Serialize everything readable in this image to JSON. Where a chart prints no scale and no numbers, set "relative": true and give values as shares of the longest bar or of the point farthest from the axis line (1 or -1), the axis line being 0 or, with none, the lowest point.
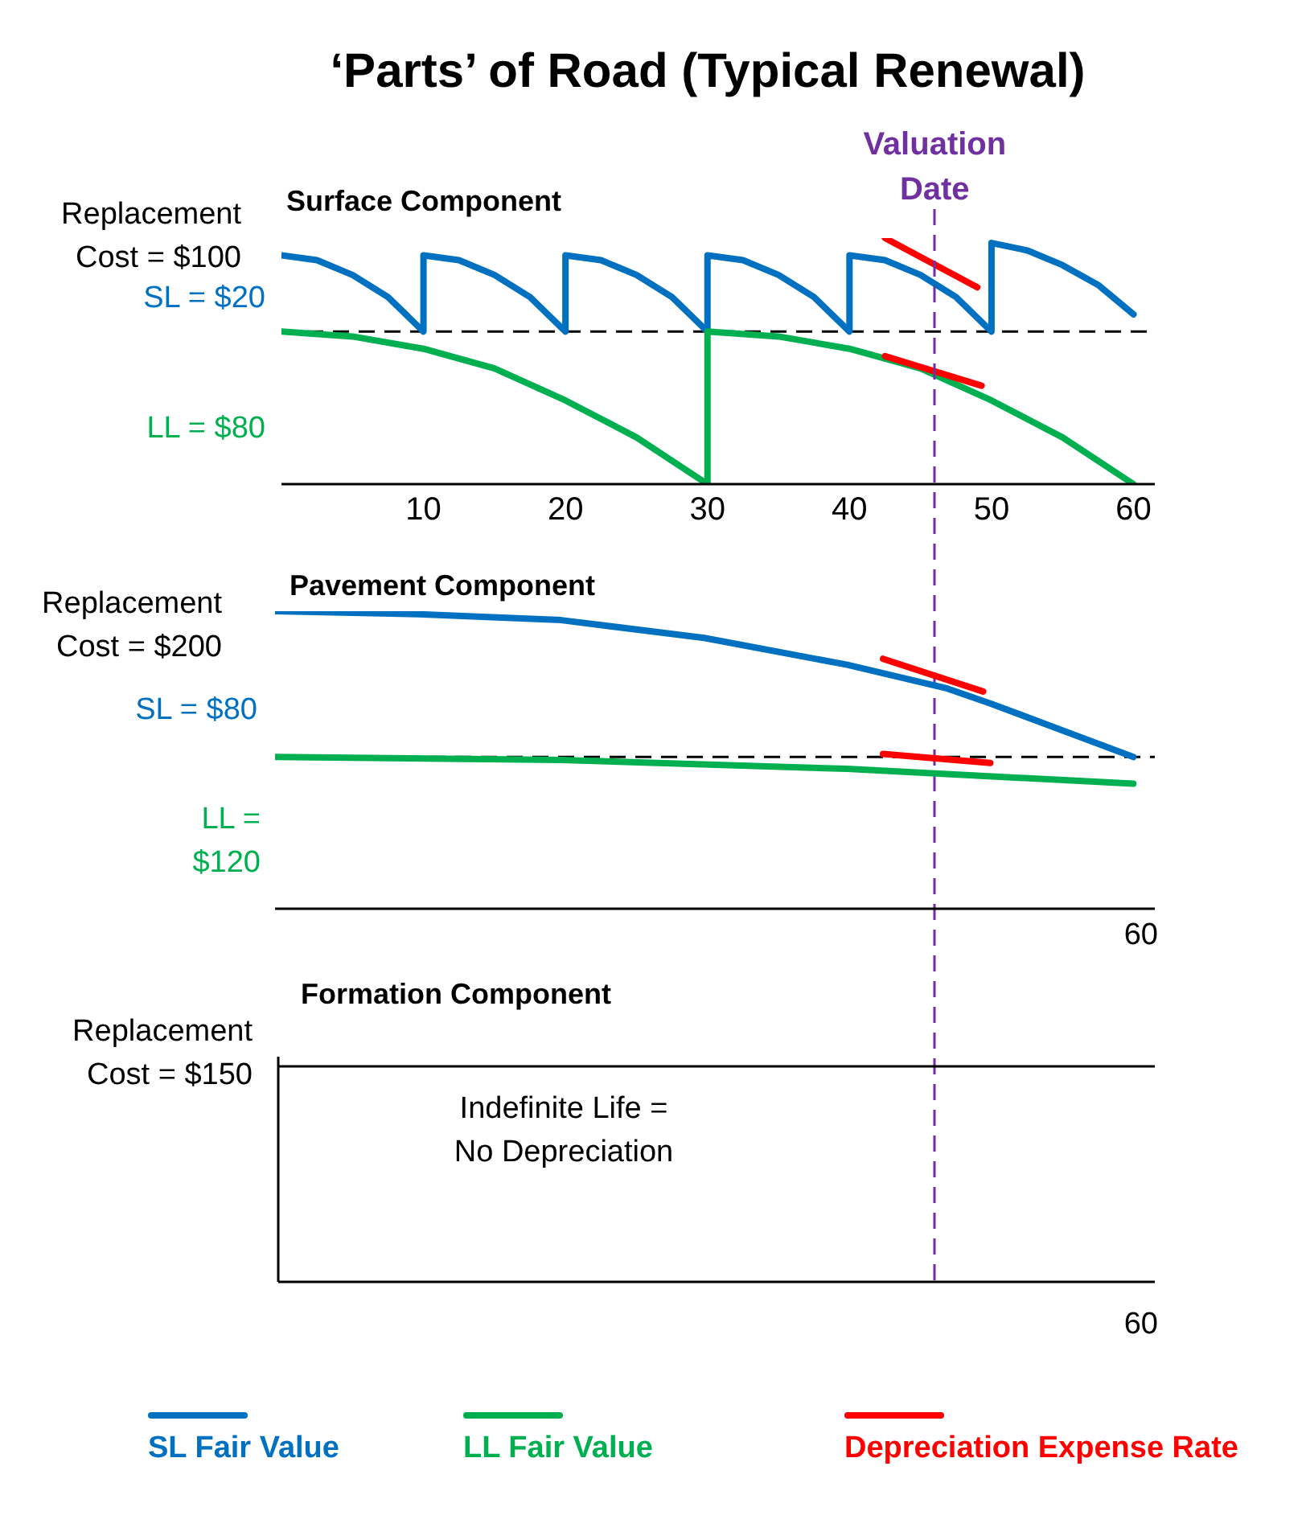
{
  "chart_data": [
    {
      "type": "line",
      "title": "‘Parts’ of Road (Typical Renewal)",
      "subtitle": "Surface Component",
      "relative": true,
      "xlim": [
        0,
        61.5
      ],
      "xticks": [
        10,
        20,
        30,
        40,
        50,
        60
      ],
      "legend": "bottom",
      "tick_labels": "x",
      "series": [
        {
          "name": "SL Fair Value",
          "color": "#0070c0",
          "x": [
            0,
            2.5,
            5,
            7.5,
            10,
            10,
            12.5,
            15,
            17.5,
            20,
            20,
            22.5,
            25,
            27.5,
            30,
            30,
            32.5,
            35,
            37.5,
            40,
            40,
            42.5,
            45,
            47.5,
            50,
            50,
            52.5,
            55,
            57.5,
            60
          ],
          "values": [
            0.93,
            0.91,
            0.85,
            0.76,
            0.62,
            0.93,
            0.91,
            0.85,
            0.76,
            0.62,
            0.93,
            0.91,
            0.85,
            0.76,
            0.62,
            0.93,
            0.91,
            0.85,
            0.76,
            0.62,
            0.93,
            0.91,
            0.85,
            0.76,
            0.62,
            0.98,
            0.95,
            0.89,
            0.81,
            0.69
          ]
        },
        {
          "name": "LL Fair Value",
          "color": "#00b050",
          "x": [
            0,
            5,
            10,
            15,
            20,
            25,
            30,
            30,
            35,
            40,
            45,
            50,
            55,
            60
          ],
          "values": [
            0.62,
            0.6,
            0.55,
            0.47,
            0.34,
            0.19,
            0,
            0.62,
            0.6,
            0.55,
            0.47,
            0.34,
            0.19,
            0
          ]
        },
        {
          "name": "Depreciation Expense Rate",
          "color": "#ff0000",
          "x": [
            42.5,
            49,
            46,
            42.5,
            49.3
          ],
          "values": [
            1,
            0.8,
            null,
            0.52,
            0.4
          ]
        }
      ],
      "ref_lines": [
        {
          "axis": "y",
          "value": 0.62,
          "color": "#000000",
          "line_style": "dashed"
        },
        {
          "axis": "x",
          "value": 46,
          "label": "Valuation Date",
          "color": "#7030a0",
          "line_style": "dashed"
        }
      ],
      "annotations": [
        "Replacement Cost = $100",
        "SL = $20",
        "LL = $80"
      ]
    },
    {
      "type": "line",
      "title": "Pavement Component",
      "relative": true,
      "xlim": [
        0,
        61.5
      ],
      "tick_labels": false,
      "series": [
        {
          "color": "#0070c0",
          "x": [
            0,
            10,
            20,
            30,
            40,
            47,
            50,
            55,
            60
          ],
          "values": [
            1,
            0.99,
            0.97,
            0.91,
            0.82,
            0.74,
            0.69,
            0.6,
            0.51
          ]
        },
        {
          "color": "#00b050",
          "x": [
            0,
            20,
            40,
            60
          ],
          "values": [
            0.51,
            0.5,
            0.47,
            0.42
          ]
        },
        {
          "color": "#ff0000",
          "x": [
            42.5,
            49.5,
            46,
            42.5,
            50
          ],
          "values": [
            0.84,
            0.73,
            null,
            0.52,
            0.49
          ]
        }
      ],
      "ref_lines": [
        {
          "axis": "y",
          "value": 0.51,
          "color": "#000000",
          "line_style": "dashed"
        }
      ],
      "annotations": [
        "Replacement Cost = $200",
        "SL = $80",
        "LL = $120",
        "60"
      ]
    },
    {
      "type": "other",
      "title": "Formation Component",
      "annotations": [
        "Replacement Cost = $150",
        "Indefinite Life = No Depreciation",
        "60"
      ]
    }
  ]
}
